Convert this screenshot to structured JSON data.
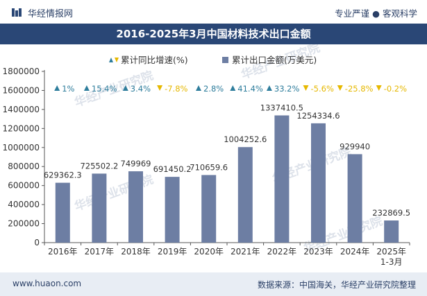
{
  "header": {
    "brand": "华经情报网",
    "tagline": "专业严谨 ● 客观科学",
    "title": "2016-2025年3月中国材料技术出口金额"
  },
  "footer": {
    "website": "www.huaon.com",
    "source": "数据来源：中国海关，华经产业研究院整理"
  },
  "watermark": "华经产业研究院",
  "colors": {
    "bar": "#6d7ea3",
    "up": "#2e7d9c",
    "down": "#e6b800",
    "title_bg": "#2a4776"
  },
  "chart_data": {
    "type": "bar",
    "title": "2016-2025年3月中国材料技术出口金额",
    "categories": [
      "2016年",
      "2017年",
      "2018年",
      "2019年",
      "2020年",
      "2021年",
      "2022年",
      "2023年",
      "2024年",
      "2025年\n1-3月"
    ],
    "series": [
      {
        "name": "累计出口金额(万美元)",
        "values": [
          629362.3,
          725502.2,
          749969,
          691450.2,
          710659.6,
          1004252.6,
          1337410.5,
          1254334.6,
          929940,
          232869.5
        ],
        "labels": [
          "629362.3",
          "725502.2",
          "749969",
          "691450.2",
          "710659.6",
          "1004252.6",
          "1337410.5",
          "1254334.6",
          "929940",
          "232869.5"
        ]
      },
      {
        "name": "累计同比增速(%)",
        "values": [
          1,
          15.4,
          3.4,
          -7.8,
          2.8,
          41.4,
          33.2,
          -5.6,
          -25.8,
          -0.2
        ],
        "labels": [
          "1%",
          "15.4%",
          "3.4%",
          "-7.8%",
          "2.8%",
          "41.4%",
          "33.2%",
          "-5.6%",
          "-25.8%",
          "-0.2%"
        ]
      }
    ],
    "ylim": [
      0,
      1800000
    ],
    "yticks": [
      "0",
      "200000",
      "400000",
      "600000",
      "800000",
      "1000000",
      "1200000",
      "1400000",
      "1600000",
      "1800000"
    ],
    "legend": {
      "position": "top",
      "growth_label": "累计同比增速(%)",
      "amount_label": "累计出口金额(万美元)"
    },
    "grid": false
  }
}
